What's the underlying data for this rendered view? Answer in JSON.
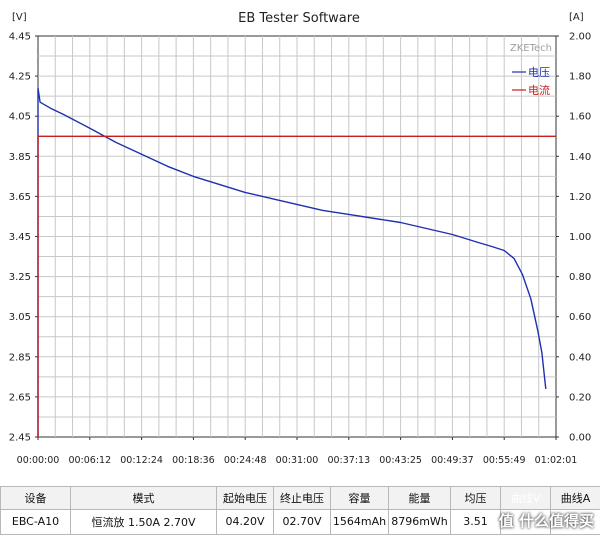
{
  "chart_data": {
    "type": "line",
    "title": "EB Tester Software",
    "y_left_unit": "[V]",
    "y_right_unit": "[A]",
    "y_left_range": [
      2.45,
      4.45
    ],
    "y_right_range": [
      0.0,
      2.0
    ],
    "y_left_ticks": [
      "4.45",
      "4.25",
      "4.05",
      "3.85",
      "3.65",
      "3.45",
      "3.25",
      "3.05",
      "2.85",
      "2.65",
      "2.45"
    ],
    "y_right_ticks": [
      "2.00",
      "1.80",
      "1.60",
      "1.40",
      "1.20",
      "1.00",
      "0.80",
      "0.60",
      "0.40",
      "0.20",
      "0.00"
    ],
    "x_range_seconds": [
      0,
      3721
    ],
    "x_ticks": [
      "00:00:00",
      "00:06:12",
      "00:12:24",
      "00:18:36",
      "00:24:48",
      "00:31:00",
      "00:37:13",
      "00:43:25",
      "00:49:37",
      "00:55:49",
      "01:02:01"
    ],
    "grid": true,
    "legend_placement": "top-right",
    "brand": "ZKETech",
    "series": [
      {
        "name": "电压",
        "axis": "left",
        "color": "#1f2fb0",
        "points": [
          [
            "00:00:00",
            2.45
          ],
          [
            "00:00:00",
            4.19
          ],
          [
            "00:00:15",
            4.12
          ],
          [
            "00:01:30",
            4.09
          ],
          [
            "00:03:00",
            4.06
          ],
          [
            "00:06:12",
            3.99
          ],
          [
            "00:09:18",
            3.92
          ],
          [
            "00:12:24",
            3.86
          ],
          [
            "00:15:30",
            3.8
          ],
          [
            "00:18:36",
            3.75
          ],
          [
            "00:21:42",
            3.71
          ],
          [
            "00:24:48",
            3.67
          ],
          [
            "00:27:54",
            3.64
          ],
          [
            "00:31:00",
            3.61
          ],
          [
            "00:34:06",
            3.58
          ],
          [
            "00:37:13",
            3.56
          ],
          [
            "00:40:19",
            3.54
          ],
          [
            "00:43:25",
            3.52
          ],
          [
            "00:46:31",
            3.49
          ],
          [
            "00:49:37",
            3.46
          ],
          [
            "00:52:43",
            3.42
          ],
          [
            "00:54:20",
            3.4
          ],
          [
            "00:55:49",
            3.38
          ],
          [
            "00:57:00",
            3.34
          ],
          [
            "00:58:00",
            3.26
          ],
          [
            "00:59:00",
            3.14
          ],
          [
            "00:59:50",
            2.98
          ],
          [
            "01:00:20",
            2.87
          ],
          [
            "01:00:40",
            2.74
          ],
          [
            "01:00:48",
            2.69
          ]
        ]
      },
      {
        "name": "电流",
        "axis": "right",
        "color": "#c81e1e",
        "points": [
          [
            "00:00:00",
            0.0
          ],
          [
            "00:00:00",
            1.5
          ],
          [
            "01:02:01",
            1.5
          ]
        ]
      }
    ]
  },
  "status_table": {
    "headers": [
      "设备",
      "模式",
      "起始电压",
      "终止电压",
      "容量",
      "能量",
      "均压",
      "曲线V",
      "曲线A"
    ],
    "row": [
      "EBC-A10",
      "恒流放 1.50A 2.70V",
      "04.20V",
      "02.70V",
      "1564mAh",
      "8796mWh",
      "3.51",
      "",
      ""
    ]
  },
  "watermark": "值 什么值得买"
}
